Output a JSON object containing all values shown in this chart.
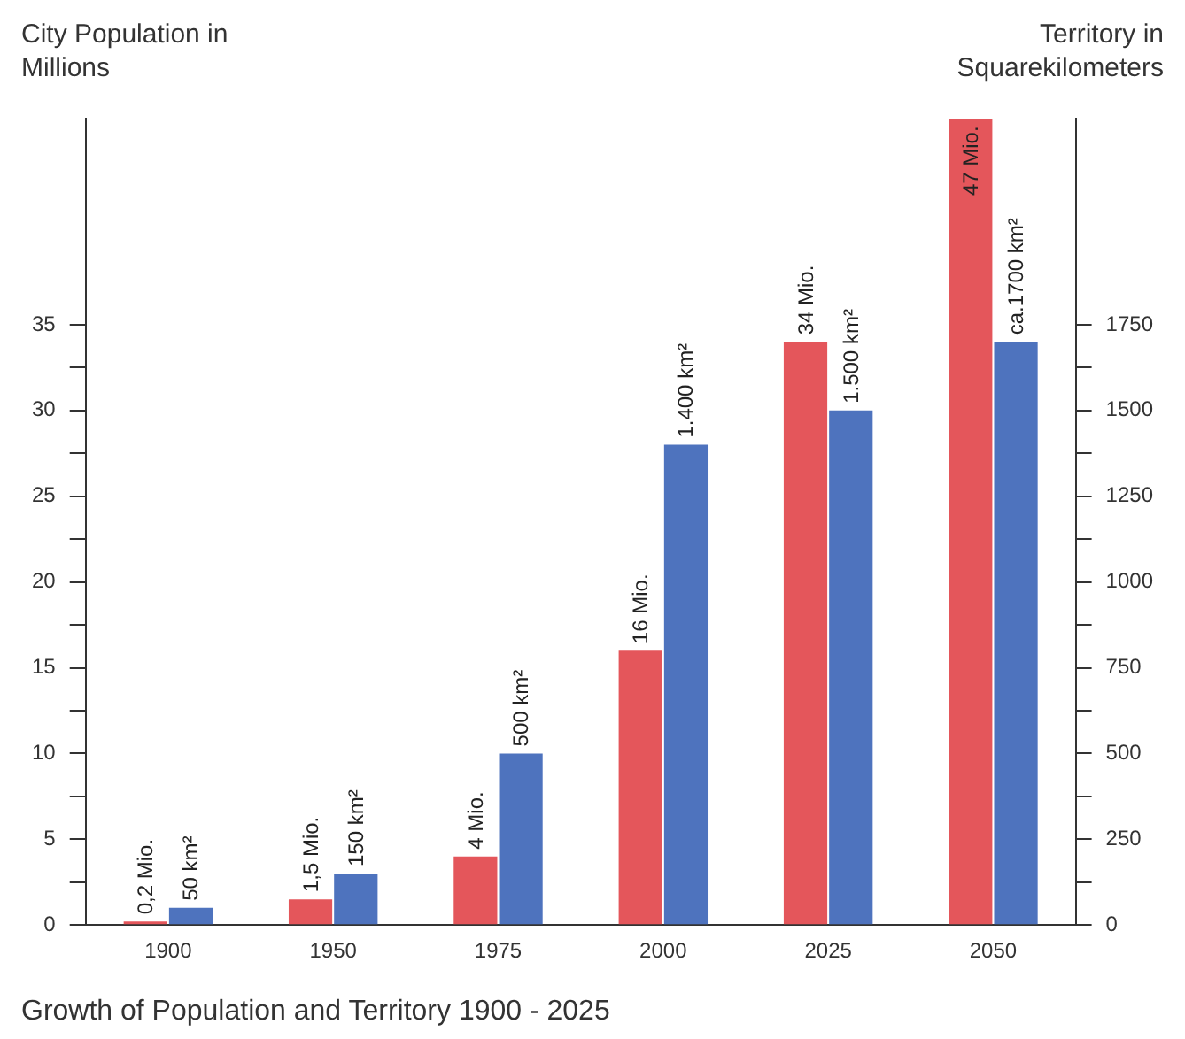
{
  "chart_data": {
    "type": "bar",
    "title": "Growth of Population and Territory 1900 - 2025",
    "ylabel": "City Population in Millions",
    "y2label": "Territory in Squarekilometers",
    "categories": [
      "1900",
      "1950",
      "1975",
      "2000",
      "2025",
      "2050"
    ],
    "series": [
      {
        "color": "#e4565b",
        "axis": "y",
        "values": [
          0.2,
          1.5,
          4,
          16,
          34,
          47
        ],
        "value_labels": [
          "0,2 Mio.",
          "1,5 Mio.",
          "4 Mio.",
          "16 Mio.",
          "34 Mio.",
          "47 Mio."
        ]
      },
      {
        "color": "#4e73be",
        "axis": "y2",
        "values": [
          50,
          150,
          500,
          1400,
          1500,
          1700
        ],
        "value_labels": [
          "50 km²",
          "150 km²",
          "500 km²",
          "1.400 km²",
          "1.500 km²",
          "ca.1700 km²"
        ]
      }
    ],
    "ylim": [
      0,
      47
    ],
    "yticks": [
      0,
      {
        "value": 2.5,
        "label": null
      },
      5,
      {
        "value": 7.5,
        "label": null
      },
      10,
      {
        "value": 12.5,
        "label": null
      },
      15,
      {
        "value": 17.5,
        "label": null
      },
      20,
      {
        "value": 22.5,
        "label": null
      },
      25,
      {
        "value": 27.5,
        "label": null
      },
      30,
      {
        "value": 32.5,
        "label": null
      },
      35
    ],
    "y2lim": [
      0,
      2350
    ],
    "y2ticks": [
      0,
      {
        "value": 125,
        "label": null
      },
      250,
      {
        "value": 375,
        "label": null
      },
      500,
      {
        "value": 625,
        "label": null
      },
      750,
      {
        "value": 875,
        "label": null
      },
      1000,
      {
        "value": 1125,
        "label": null
      },
      1250,
      {
        "value": 1375,
        "label": null
      },
      1500,
      {
        "value": 1625,
        "label": null
      },
      1750
    ]
  }
}
